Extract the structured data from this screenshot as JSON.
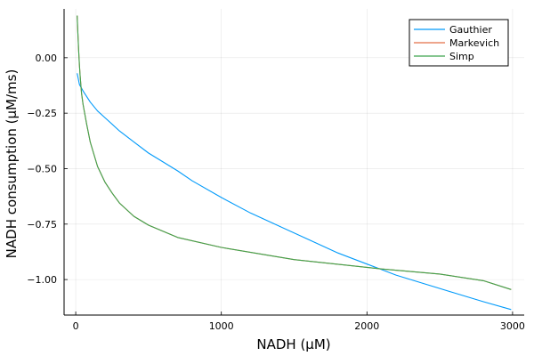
{
  "chart_data": {
    "type": "line",
    "title": "",
    "xlabel": "NADH (μM)",
    "ylabel": "NADH consumption (μM/ms)",
    "xlim": [
      -80,
      3080
    ],
    "ylim": [
      -1.16,
      0.22
    ],
    "x_ticks": [
      0,
      1000,
      2000,
      3000
    ],
    "x_tick_labels": [
      "0",
      "1000",
      "2000",
      "3000"
    ],
    "y_ticks": [
      0.0,
      -0.25,
      -0.5,
      -0.75,
      -1.0
    ],
    "y_tick_labels": [
      "0.00",
      "−0.25",
      "−0.50",
      "−0.75",
      "−1.00"
    ],
    "grid": true,
    "legend_position": "top-right",
    "series": [
      {
        "name": "Gauthier",
        "color": "#009AFA",
        "x": [
          10,
          25,
          50,
          100,
          150,
          200,
          300,
          400,
          500,
          600,
          700,
          800,
          1000,
          1200,
          1400,
          1600,
          1800,
          2000,
          2100,
          2200,
          2400,
          2600,
          2800,
          2990
        ],
        "y": [
          -0.07,
          -0.12,
          -0.15,
          -0.2,
          -0.24,
          -0.27,
          -0.33,
          -0.38,
          -0.43,
          -0.47,
          -0.51,
          -0.555,
          -0.63,
          -0.7,
          -0.76,
          -0.82,
          -0.88,
          -0.93,
          -0.955,
          -0.98,
          -1.02,
          -1.06,
          -1.1,
          -1.135
        ]
      },
      {
        "name": "Markevich",
        "color": "#E36F47",
        "x": [
          10,
          15,
          20,
          25,
          30,
          40,
          50,
          75,
          100,
          150,
          200,
          250,
          300,
          400,
          500,
          700,
          1000,
          1500,
          2000,
          2100,
          2500,
          2800,
          2990
        ],
        "y": [
          0.19,
          0.11,
          0.03,
          -0.03,
          -0.08,
          -0.16,
          -0.21,
          -0.3,
          -0.38,
          -0.49,
          -0.56,
          -0.61,
          -0.655,
          -0.715,
          -0.755,
          -0.81,
          -0.855,
          -0.91,
          -0.945,
          -0.952,
          -0.975,
          -1.005,
          -1.045
        ]
      },
      {
        "name": "Simp",
        "color": "#3EA44E",
        "x": [
          10,
          15,
          20,
          25,
          30,
          40,
          50,
          75,
          100,
          150,
          200,
          250,
          300,
          400,
          500,
          700,
          1000,
          1500,
          2000,
          2100,
          2500,
          2800,
          2990
        ],
        "y": [
          0.19,
          0.11,
          0.03,
          -0.03,
          -0.08,
          -0.16,
          -0.21,
          -0.3,
          -0.38,
          -0.49,
          -0.56,
          -0.61,
          -0.655,
          -0.715,
          -0.755,
          -0.81,
          -0.855,
          -0.91,
          -0.945,
          -0.952,
          -0.975,
          -1.005,
          -1.045
        ]
      }
    ]
  }
}
